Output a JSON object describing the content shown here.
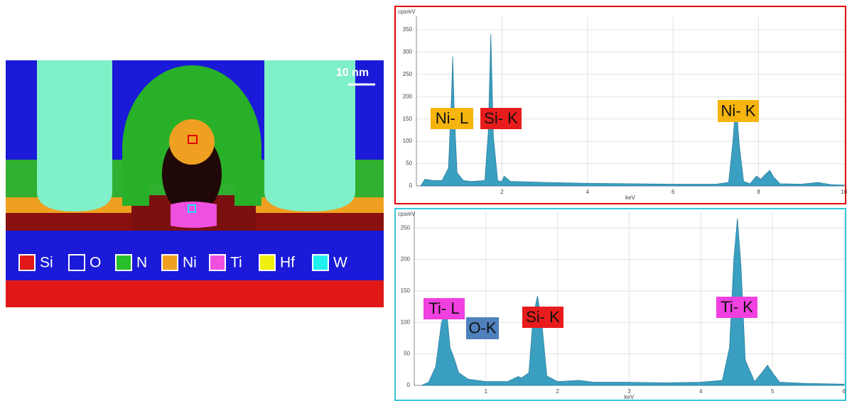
{
  "figure": {
    "scale_bar": "10 nm",
    "legend": [
      {
        "label": "Si",
        "color": "#e01818"
      },
      {
        "label": "O",
        "color": "#1a1ad8"
      },
      {
        "label": "N",
        "color": "#28c028"
      },
      {
        "label": "Ni",
        "color": "#f0a020"
      },
      {
        "label": "Ti",
        "color": "#f050e0"
      },
      {
        "label": "Hf",
        "color": "#f0f010"
      },
      {
        "label": "W",
        "color": "#20f0f0"
      }
    ]
  },
  "chart_data": [
    {
      "type": "area",
      "y_label": "cps/eV",
      "x_label": "keV",
      "border_color": "#e00000",
      "color": "#3a9fc0",
      "grid": true,
      "xlim": [
        0,
        10
      ],
      "ylim": [
        0,
        380
      ],
      "xticks": [
        2,
        4,
        6,
        8,
        10
      ],
      "yticks": [
        0,
        50,
        100,
        150,
        200,
        250,
        300,
        350
      ],
      "x": [
        0.1,
        0.2,
        0.4,
        0.6,
        0.75,
        0.82,
        0.85,
        0.88,
        0.95,
        1.1,
        1.3,
        1.6,
        1.68,
        1.74,
        1.8,
        1.9,
        2.0,
        2.05,
        2.2,
        3,
        4,
        5,
        6,
        7,
        7.3,
        7.4,
        7.47,
        7.55,
        7.65,
        7.8,
        7.95,
        8.05,
        8.15,
        8.26,
        8.35,
        8.5,
        9,
        9.4,
        9.5,
        9.7,
        10
      ],
      "values": [
        0,
        15,
        12,
        12,
        40,
        200,
        290,
        180,
        30,
        12,
        10,
        12,
        120,
        340,
        110,
        12,
        10,
        22,
        10,
        8,
        6,
        5,
        4,
        4,
        8,
        100,
        190,
        90,
        10,
        5,
        22,
        15,
        25,
        35,
        20,
        5,
        4,
        8,
        6,
        3,
        2
      ],
      "annotations": [
        {
          "text": "Ni- L",
          "color": "#f6b40e"
        },
        {
          "text": "Si- K",
          "color": "#e81c1c"
        },
        {
          "text": "Ni- K",
          "color": "#f6b40e"
        }
      ]
    },
    {
      "type": "area",
      "y_label": "cps/eV",
      "x_label": "keV",
      "border_color": "#35c6d8",
      "color": "#3a9fc0",
      "grid": true,
      "xlim": [
        0,
        6
      ],
      "ylim": [
        0,
        275
      ],
      "xticks": [
        1,
        2,
        3,
        4,
        5,
        6
      ],
      "yticks": [
        0,
        50,
        100,
        150,
        200,
        250
      ],
      "x": [
        0.1,
        0.2,
        0.3,
        0.38,
        0.45,
        0.5,
        0.55,
        0.62,
        0.75,
        1.0,
        1.3,
        1.45,
        1.5,
        1.6,
        1.66,
        1.72,
        1.78,
        1.85,
        2.0,
        2.3,
        2.5,
        3,
        3.5,
        4,
        4.3,
        4.4,
        4.46,
        4.51,
        4.56,
        4.62,
        4.75,
        4.85,
        4.93,
        5.0,
        5.1,
        5.5,
        6
      ],
      "values": [
        0,
        5,
        30,
        100,
        120,
        60,
        45,
        20,
        10,
        6,
        6,
        14,
        12,
        20,
        110,
        142,
        100,
        15,
        6,
        8,
        5,
        5,
        4,
        5,
        8,
        60,
        200,
        265,
        190,
        40,
        6,
        20,
        32,
        20,
        5,
        3,
        2
      ],
      "annotations": [
        {
          "text": "Ti- L",
          "color": "#f040e0"
        },
        {
          "text": "O-K",
          "color": "#4f81bd"
        },
        {
          "text": "Si- K",
          "color": "#e81c1c"
        },
        {
          "text": "Ti- K",
          "color": "#f040e0"
        }
      ]
    }
  ]
}
